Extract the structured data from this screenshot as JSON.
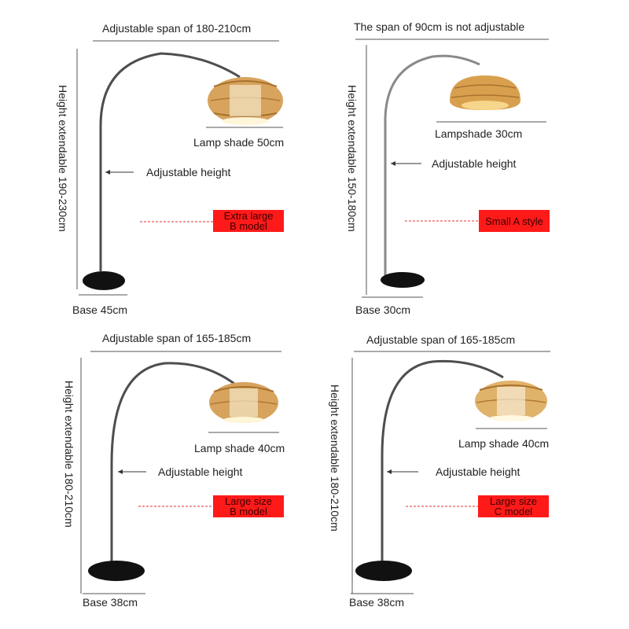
{
  "colors": {
    "badge_bg": "#ff1a1a",
    "pole": "#5a5a5a",
    "base": "#111111",
    "shade": "#d9a25a",
    "dashed_line": "#e23030"
  },
  "panels": [
    {
      "span_label": "Adjustable span of 180-210cm",
      "height_label": "Height extendable 190-230cm",
      "shade_label": "Lamp shade 50cm",
      "adjust_label": "Adjustable height",
      "model_line1": "Extra large",
      "model_line2": "B model",
      "base_label": "Base 45cm"
    },
    {
      "span_label": "The span of 90cm is not adjustable",
      "height_label": "Height extendable 150-180cm",
      "shade_label": "Lampshade 30cm",
      "adjust_label": "Adjustable height",
      "model_line1": "Small A style",
      "model_line2": "",
      "base_label": "Base 30cm"
    },
    {
      "span_label": "Adjustable span of 165-185cm",
      "height_label": "Height extendable 180-210cm",
      "shade_label": "Lamp shade 40cm",
      "adjust_label": "Adjustable height",
      "model_line1": "Large size",
      "model_line2": "B model",
      "base_label": "Base 38cm"
    },
    {
      "span_label": "Adjustable span of 165-185cm",
      "height_label": "Height extendable 180-210cm",
      "shade_label": "Lamp shade 40cm",
      "adjust_label": "Adjustable height",
      "model_line1": "Large size",
      "model_line2": "C model",
      "base_label": "Base 38cm"
    }
  ]
}
